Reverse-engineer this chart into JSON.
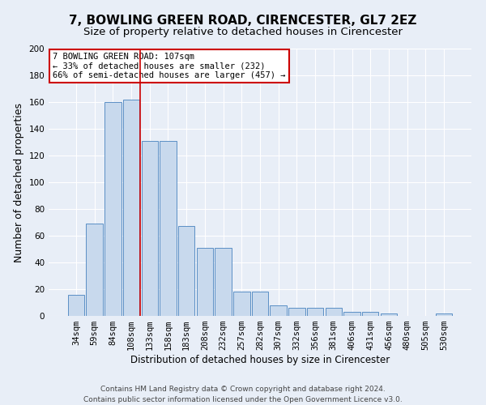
{
  "title": "7, BOWLING GREEN ROAD, CIRENCESTER, GL7 2EZ",
  "subtitle": "Size of property relative to detached houses in Cirencester",
  "xlabel": "Distribution of detached houses by size in Cirencester",
  "ylabel": "Number of detached properties",
  "categories": [
    "34sqm",
    "59sqm",
    "84sqm",
    "108sqm",
    "133sqm",
    "158sqm",
    "183sqm",
    "208sqm",
    "232sqm",
    "257sqm",
    "282sqm",
    "307sqm",
    "332sqm",
    "356sqm",
    "381sqm",
    "406sqm",
    "431sqm",
    "456sqm",
    "480sqm",
    "505sqm",
    "530sqm"
  ],
  "values": [
    16,
    69,
    160,
    162,
    131,
    131,
    67,
    51,
    51,
    18,
    18,
    8,
    6,
    6,
    6,
    3,
    3,
    2,
    0,
    0,
    2
  ],
  "bar_color": "#c8d9ed",
  "bar_edge_color": "#5b8fc5",
  "background_color": "#e8eef7",
  "grid_color": "#ffffff",
  "vline_x": 3.5,
  "vline_color": "#cc0000",
  "annotation_text": "7 BOWLING GREEN ROAD: 107sqm\n← 33% of detached houses are smaller (232)\n66% of semi-detached houses are larger (457) →",
  "annotation_box_color": "#ffffff",
  "annotation_box_edge_color": "#cc0000",
  "footer_text": "Contains HM Land Registry data © Crown copyright and database right 2024.\nContains public sector information licensed under the Open Government Licence v3.0.",
  "ylim": [
    0,
    200
  ],
  "yticks": [
    0,
    20,
    40,
    60,
    80,
    100,
    120,
    140,
    160,
    180,
    200
  ],
  "title_fontsize": 11,
  "subtitle_fontsize": 9.5,
  "xlabel_fontsize": 8.5,
  "ylabel_fontsize": 9,
  "tick_fontsize": 7.5,
  "annotation_fontsize": 7.5,
  "footer_fontsize": 6.5
}
